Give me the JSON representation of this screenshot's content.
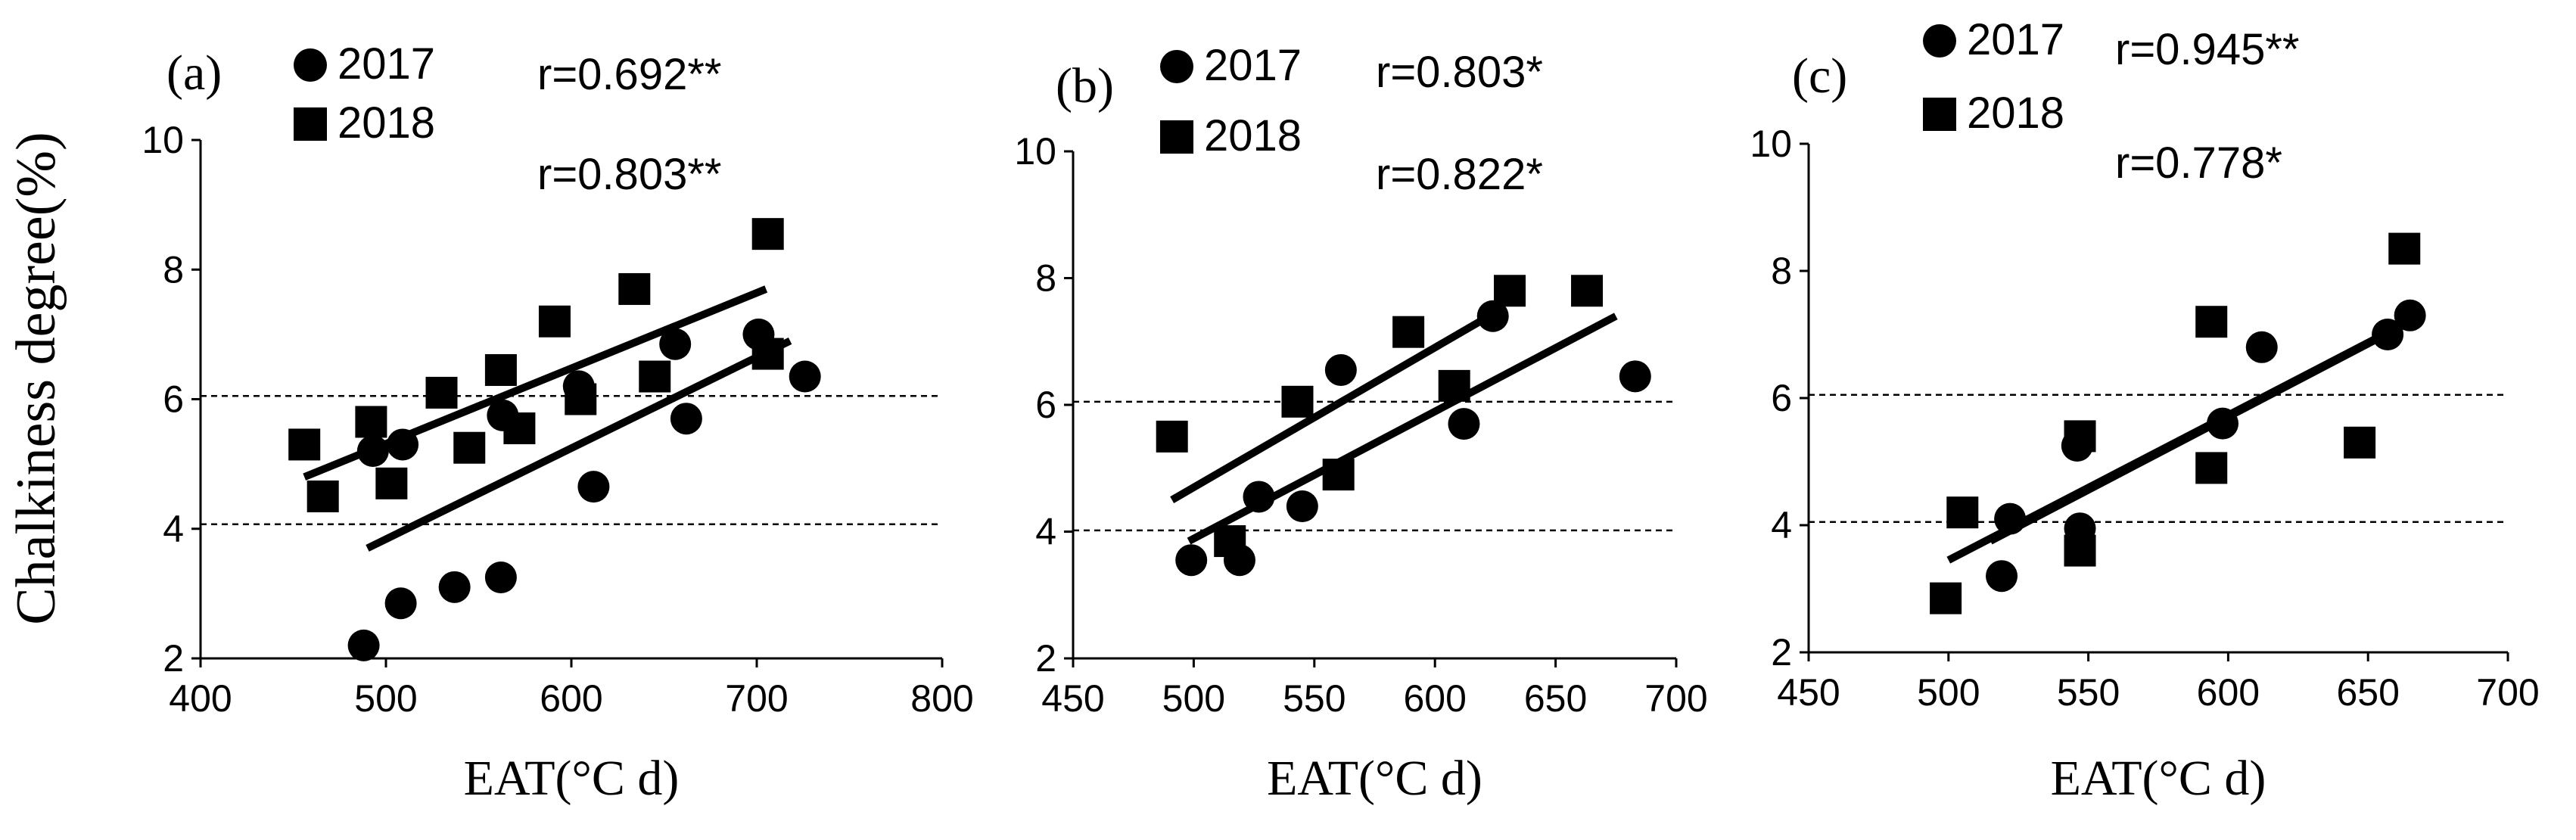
{
  "ylabel": "Chalkiness degree(%)",
  "chart_data": [
    {
      "type": "scatter",
      "panel_label": "(a)",
      "xlabel": "EAT(°C d)",
      "ylabel": "Chalkiness degree(%)",
      "xlim": [
        400,
        800
      ],
      "ylim": [
        2,
        10
      ],
      "xticks": [
        "400",
        "500",
        "600",
        "700",
        "800"
      ],
      "yticks": [
        "2",
        "4",
        "6",
        "8",
        "10"
      ],
      "reference_lines": [
        4.07,
        6.05
      ],
      "legend": [
        "2017",
        "2018"
      ],
      "correlations": [
        "r=0.692**",
        "r=0.803**"
      ],
      "series": [
        {
          "name": "2017",
          "marker": "circle",
          "x": [
            488,
            493,
            508,
            509,
            537,
            562,
            563,
            604,
            612,
            656,
            662,
            701,
            726
          ],
          "y": [
            2.2,
            5.2,
            2.85,
            5.3,
            3.1,
            3.25,
            5.75,
            6.2,
            4.65,
            6.85,
            5.7,
            7.0,
            6.35
          ],
          "fit": [
            [
              490,
              3.7
            ],
            [
              718,
              6.9
            ]
          ]
        },
        {
          "name": "2018",
          "marker": "square",
          "x": [
            456,
            466,
            492,
            503,
            530,
            545,
            562,
            572,
            591,
            605,
            634,
            645,
            706,
            706
          ],
          "y": [
            5.3,
            4.5,
            5.65,
            4.7,
            6.1,
            5.25,
            6.45,
            5.55,
            7.2,
            6.0,
            7.7,
            6.35,
            8.55,
            6.7
          ],
          "fit": [
            [
              456,
              4.8
            ],
            [
              705,
              7.7
            ]
          ]
        }
      ]
    },
    {
      "type": "scatter",
      "panel_label": "(b)",
      "xlabel": "EAT(°C d)",
      "ylabel": "",
      "xlim": [
        450,
        700
      ],
      "ylim": [
        2,
        10
      ],
      "xticks": [
        "450",
        "500",
        "550",
        "600",
        "650",
        "700"
      ],
      "yticks": [
        "2",
        "4",
        "6",
        "8",
        "10"
      ],
      "reference_lines": [
        4.02,
        6.05
      ],
      "legend": [
        "2017",
        "2018"
      ],
      "correlations": [
        "r=0.803*",
        "r=0.822*"
      ],
      "series": [
        {
          "name": "2017",
          "marker": "circle",
          "x": [
            499,
            519,
            527,
            545,
            561,
            612,
            624,
            683
          ],
          "y": [
            3.55,
            3.55,
            4.55,
            4.4,
            6.55,
            5.7,
            7.4,
            6.45
          ],
          "fit": [
            [
              498,
              3.85
            ],
            [
              675,
              7.4
            ]
          ]
        },
        {
          "name": "2018",
          "marker": "square",
          "x": [
            491,
            515,
            543,
            560,
            589,
            608,
            631,
            663
          ],
          "y": [
            5.5,
            3.85,
            6.05,
            4.9,
            7.15,
            6.3,
            7.8,
            7.8
          ],
          "fit": [
            [
              491,
              4.5
            ],
            [
              627,
              7.5
            ]
          ]
        }
      ]
    },
    {
      "type": "scatter",
      "panel_label": "(c)",
      "xlabel": "EAT(°C d)",
      "ylabel": "",
      "xlim": [
        450,
        700
      ],
      "ylim": [
        2,
        10
      ],
      "xticks": [
        "450",
        "500",
        "550",
        "600",
        "650",
        "700"
      ],
      "yticks": [
        "2",
        "4",
        "6",
        "8",
        "10"
      ],
      "reference_lines": [
        4.05,
        6.05
      ],
      "legend": [
        "2017",
        "2018"
      ],
      "correlations": [
        "r=0.945**",
        "r=0.778*"
      ],
      "series": [
        {
          "name": "2017",
          "marker": "circle",
          "x": [
            519,
            522,
            546,
            547,
            598,
            612,
            657,
            665
          ],
          "y": [
            3.2,
            4.1,
            5.25,
            3.95,
            5.6,
            6.8,
            7.0,
            7.3
          ],
          "fit": [
            [
              515,
              3.75
            ],
            [
              665,
              7.2
            ]
          ]
        },
        {
          "name": "2018",
          "marker": "square",
          "x": [
            499,
            505,
            547,
            547,
            594,
            594,
            647,
            663
          ],
          "y": [
            2.85,
            4.2,
            5.4,
            3.6,
            7.2,
            4.9,
            5.3,
            8.35
          ],
          "fit": [
            [
              500,
              3.45
            ],
            [
              660,
              7.1
            ]
          ]
        }
      ]
    }
  ]
}
